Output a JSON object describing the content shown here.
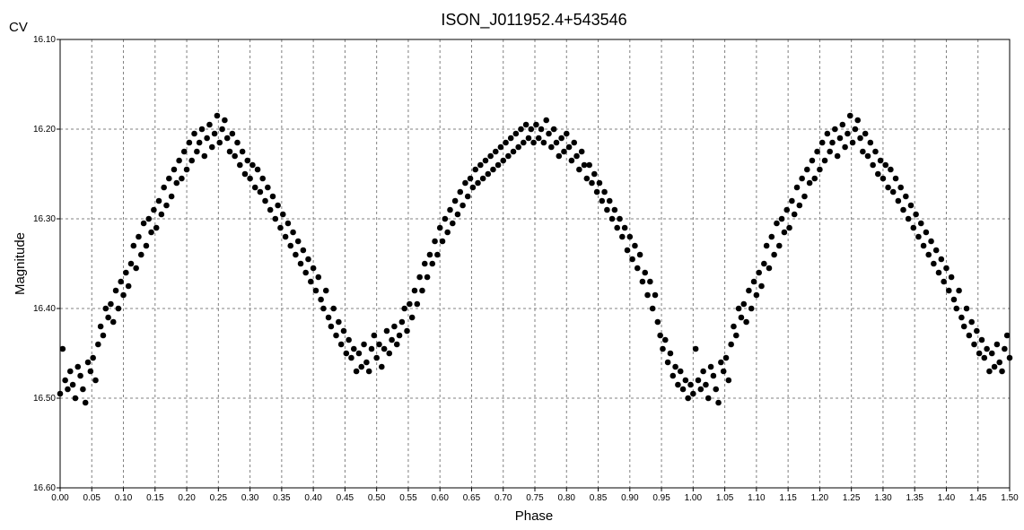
{
  "chart_data": {
    "type": "scatter",
    "title": "ISON_J011952.4+543546",
    "filter_label": "CV",
    "xlabel": "Phase",
    "ylabel": "Magnitude",
    "xlim": [
      0.0,
      1.5
    ],
    "ylim": [
      16.1,
      16.6
    ],
    "y_inverted": true,
    "grid": true,
    "grid_style": "dashed",
    "point_color": "#000000",
    "x_ticks": [
      "0.00",
      "0.05",
      "0.10",
      "0.15",
      "0.20",
      "0.25",
      "0.30",
      "0.35",
      "0.40",
      "0.45",
      "0.50",
      "0.55",
      "0.60",
      "0.65",
      "0.70",
      "0.75",
      "0.80",
      "0.85",
      "0.90",
      "0.95",
      "1.00",
      "1.05",
      "1.10",
      "1.15",
      "1.20",
      "1.25",
      "1.30",
      "1.35",
      "1.40",
      "1.45",
      "1.50"
    ],
    "y_ticks": [
      "16.10",
      "16.20",
      "16.30",
      "16.40",
      "16.50",
      "16.60"
    ],
    "phase_repeat_offset": 1.0,
    "points": [
      [
        0.0,
        16.495
      ],
      [
        0.004,
        16.445
      ],
      [
        0.008,
        16.48
      ],
      [
        0.012,
        16.49
      ],
      [
        0.016,
        16.47
      ],
      [
        0.02,
        16.485
      ],
      [
        0.024,
        16.5
      ],
      [
        0.028,
        16.465
      ],
      [
        0.032,
        16.475
      ],
      [
        0.036,
        16.49
      ],
      [
        0.04,
        16.505
      ],
      [
        0.044,
        16.46
      ],
      [
        0.048,
        16.47
      ],
      [
        0.052,
        16.455
      ],
      [
        0.056,
        16.48
      ],
      [
        0.06,
        16.44
      ],
      [
        0.064,
        16.42
      ],
      [
        0.068,
        16.43
      ],
      [
        0.072,
        16.4
      ],
      [
        0.076,
        16.41
      ],
      [
        0.08,
        16.395
      ],
      [
        0.084,
        16.415
      ],
      [
        0.088,
        16.38
      ],
      [
        0.092,
        16.4
      ],
      [
        0.096,
        16.37
      ],
      [
        0.1,
        16.385
      ],
      [
        0.104,
        16.36
      ],
      [
        0.108,
        16.375
      ],
      [
        0.112,
        16.35
      ],
      [
        0.116,
        16.33
      ],
      [
        0.12,
        16.355
      ],
      [
        0.124,
        16.32
      ],
      [
        0.128,
        16.34
      ],
      [
        0.132,
        16.305
      ],
      [
        0.136,
        16.33
      ],
      [
        0.14,
        16.3
      ],
      [
        0.144,
        16.315
      ],
      [
        0.148,
        16.29
      ],
      [
        0.152,
        16.31
      ],
      [
        0.156,
        16.28
      ],
      [
        0.16,
        16.295
      ],
      [
        0.164,
        16.265
      ],
      [
        0.168,
        16.285
      ],
      [
        0.172,
        16.255
      ],
      [
        0.176,
        16.275
      ],
      [
        0.18,
        16.245
      ],
      [
        0.184,
        16.26
      ],
      [
        0.188,
        16.235
      ],
      [
        0.192,
        16.255
      ],
      [
        0.196,
        16.225
      ],
      [
        0.2,
        16.245
      ],
      [
        0.204,
        16.215
      ],
      [
        0.208,
        16.235
      ],
      [
        0.212,
        16.205
      ],
      [
        0.216,
        16.225
      ],
      [
        0.22,
        16.215
      ],
      [
        0.224,
        16.2
      ],
      [
        0.228,
        16.23
      ],
      [
        0.232,
        16.21
      ],
      [
        0.236,
        16.195
      ],
      [
        0.24,
        16.22
      ],
      [
        0.244,
        16.205
      ],
      [
        0.248,
        16.185
      ],
      [
        0.252,
        16.215
      ],
      [
        0.256,
        16.2
      ],
      [
        0.26,
        16.19
      ],
      [
        0.264,
        16.21
      ],
      [
        0.268,
        16.225
      ],
      [
        0.272,
        16.205
      ],
      [
        0.276,
        16.23
      ],
      [
        0.28,
        16.215
      ],
      [
        0.284,
        16.24
      ],
      [
        0.288,
        16.225
      ],
      [
        0.292,
        16.25
      ],
      [
        0.296,
        16.235
      ],
      [
        0.3,
        16.255
      ],
      [
        0.304,
        16.24
      ],
      [
        0.308,
        16.265
      ],
      [
        0.312,
        16.245
      ],
      [
        0.316,
        16.27
      ],
      [
        0.32,
        16.255
      ],
      [
        0.324,
        16.28
      ],
      [
        0.328,
        16.265
      ],
      [
        0.332,
        16.29
      ],
      [
        0.336,
        16.275
      ],
      [
        0.34,
        16.3
      ],
      [
        0.344,
        16.285
      ],
      [
        0.348,
        16.31
      ],
      [
        0.352,
        16.295
      ],
      [
        0.356,
        16.32
      ],
      [
        0.36,
        16.305
      ],
      [
        0.364,
        16.33
      ],
      [
        0.368,
        16.315
      ],
      [
        0.372,
        16.34
      ],
      [
        0.376,
        16.325
      ],
      [
        0.38,
        16.35
      ],
      [
        0.384,
        16.335
      ],
      [
        0.388,
        16.36
      ],
      [
        0.392,
        16.345
      ],
      [
        0.396,
        16.37
      ],
      [
        0.4,
        16.355
      ],
      [
        0.404,
        16.38
      ],
      [
        0.408,
        16.365
      ],
      [
        0.412,
        16.39
      ],
      [
        0.416,
        16.4
      ],
      [
        0.42,
        16.38
      ],
      [
        0.424,
        16.41
      ],
      [
        0.428,
        16.42
      ],
      [
        0.432,
        16.4
      ],
      [
        0.436,
        16.43
      ],
      [
        0.44,
        16.415
      ],
      [
        0.444,
        16.44
      ],
      [
        0.448,
        16.425
      ],
      [
        0.452,
        16.45
      ],
      [
        0.456,
        16.435
      ],
      [
        0.46,
        16.455
      ],
      [
        0.464,
        16.445
      ],
      [
        0.468,
        16.47
      ],
      [
        0.472,
        16.45
      ],
      [
        0.476,
        16.465
      ],
      [
        0.48,
        16.44
      ],
      [
        0.484,
        16.46
      ],
      [
        0.488,
        16.47
      ],
      [
        0.492,
        16.445
      ],
      [
        0.496,
        16.43
      ],
      [
        0.5,
        16.455
      ],
      [
        0.504,
        16.44
      ],
      [
        0.508,
        16.465
      ],
      [
        0.512,
        16.445
      ],
      [
        0.516,
        16.425
      ],
      [
        0.52,
        16.45
      ],
      [
        0.524,
        16.435
      ],
      [
        0.528,
        16.42
      ],
      [
        0.532,
        16.44
      ],
      [
        0.536,
        16.43
      ],
      [
        0.54,
        16.415
      ],
      [
        0.544,
        16.4
      ],
      [
        0.548,
        16.425
      ],
      [
        0.552,
        16.395
      ],
      [
        0.556,
        16.41
      ],
      [
        0.56,
        16.38
      ],
      [
        0.564,
        16.395
      ],
      [
        0.568,
        16.365
      ],
      [
        0.572,
        16.38
      ],
      [
        0.576,
        16.35
      ],
      [
        0.58,
        16.365
      ],
      [
        0.584,
        16.34
      ],
      [
        0.588,
        16.35
      ],
      [
        0.592,
        16.325
      ],
      [
        0.596,
        16.34
      ],
      [
        0.6,
        16.31
      ],
      [
        0.604,
        16.325
      ],
      [
        0.608,
        16.3
      ],
      [
        0.612,
        16.315
      ],
      [
        0.616,
        16.29
      ],
      [
        0.62,
        16.305
      ],
      [
        0.624,
        16.28
      ],
      [
        0.628,
        16.295
      ],
      [
        0.632,
        16.27
      ],
      [
        0.636,
        16.285
      ],
      [
        0.64,
        16.26
      ],
      [
        0.644,
        16.275
      ],
      [
        0.648,
        16.255
      ],
      [
        0.652,
        16.265
      ],
      [
        0.656,
        16.245
      ],
      [
        0.66,
        16.26
      ],
      [
        0.664,
        16.24
      ],
      [
        0.668,
        16.255
      ],
      [
        0.672,
        16.235
      ],
      [
        0.676,
        16.25
      ],
      [
        0.68,
        16.23
      ],
      [
        0.684,
        16.245
      ],
      [
        0.688,
        16.225
      ],
      [
        0.692,
        16.24
      ],
      [
        0.696,
        16.22
      ],
      [
        0.7,
        16.235
      ],
      [
        0.704,
        16.215
      ],
      [
        0.708,
        16.23
      ],
      [
        0.712,
        16.21
      ],
      [
        0.716,
        16.225
      ],
      [
        0.72,
        16.205
      ],
      [
        0.724,
        16.22
      ],
      [
        0.728,
        16.2
      ],
      [
        0.732,
        16.215
      ],
      [
        0.736,
        16.195
      ],
      [
        0.74,
        16.21
      ],
      [
        0.744,
        16.2
      ],
      [
        0.748,
        16.215
      ],
      [
        0.752,
        16.195
      ],
      [
        0.756,
        16.21
      ],
      [
        0.76,
        16.2
      ],
      [
        0.764,
        16.215
      ],
      [
        0.768,
        16.19
      ],
      [
        0.772,
        16.205
      ],
      [
        0.776,
        16.22
      ],
      [
        0.78,
        16.2
      ],
      [
        0.784,
        16.215
      ],
      [
        0.788,
        16.23
      ],
      [
        0.792,
        16.21
      ],
      [
        0.796,
        16.225
      ],
      [
        0.8,
        16.205
      ],
      [
        0.804,
        16.22
      ],
      [
        0.808,
        16.235
      ],
      [
        0.812,
        16.215
      ],
      [
        0.816,
        16.23
      ],
      [
        0.82,
        16.245
      ],
      [
        0.824,
        16.225
      ],
      [
        0.828,
        16.24
      ],
      [
        0.832,
        16.255
      ],
      [
        0.836,
        16.24
      ],
      [
        0.84,
        16.26
      ],
      [
        0.844,
        16.25
      ],
      [
        0.848,
        16.27
      ],
      [
        0.852,
        16.26
      ],
      [
        0.856,
        16.28
      ],
      [
        0.86,
        16.27
      ],
      [
        0.864,
        16.29
      ],
      [
        0.868,
        16.28
      ],
      [
        0.872,
        16.3
      ],
      [
        0.876,
        16.29
      ],
      [
        0.88,
        16.31
      ],
      [
        0.884,
        16.3
      ],
      [
        0.888,
        16.32
      ],
      [
        0.892,
        16.31
      ],
      [
        0.896,
        16.335
      ],
      [
        0.9,
        16.32
      ],
      [
        0.904,
        16.345
      ],
      [
        0.908,
        16.33
      ],
      [
        0.912,
        16.355
      ],
      [
        0.916,
        16.34
      ],
      [
        0.92,
        16.37
      ],
      [
        0.924,
        16.36
      ],
      [
        0.928,
        16.385
      ],
      [
        0.932,
        16.37
      ],
      [
        0.936,
        16.4
      ],
      [
        0.94,
        16.385
      ],
      [
        0.944,
        16.415
      ],
      [
        0.948,
        16.43
      ],
      [
        0.952,
        16.445
      ],
      [
        0.956,
        16.435
      ],
      [
        0.96,
        16.46
      ],
      [
        0.964,
        16.45
      ],
      [
        0.968,
        16.475
      ],
      [
        0.972,
        16.465
      ],
      [
        0.976,
        16.485
      ],
      [
        0.98,
        16.47
      ],
      [
        0.984,
        16.49
      ],
      [
        0.988,
        16.48
      ],
      [
        0.992,
        16.5
      ],
      [
        0.996,
        16.485
      ]
    ]
  }
}
